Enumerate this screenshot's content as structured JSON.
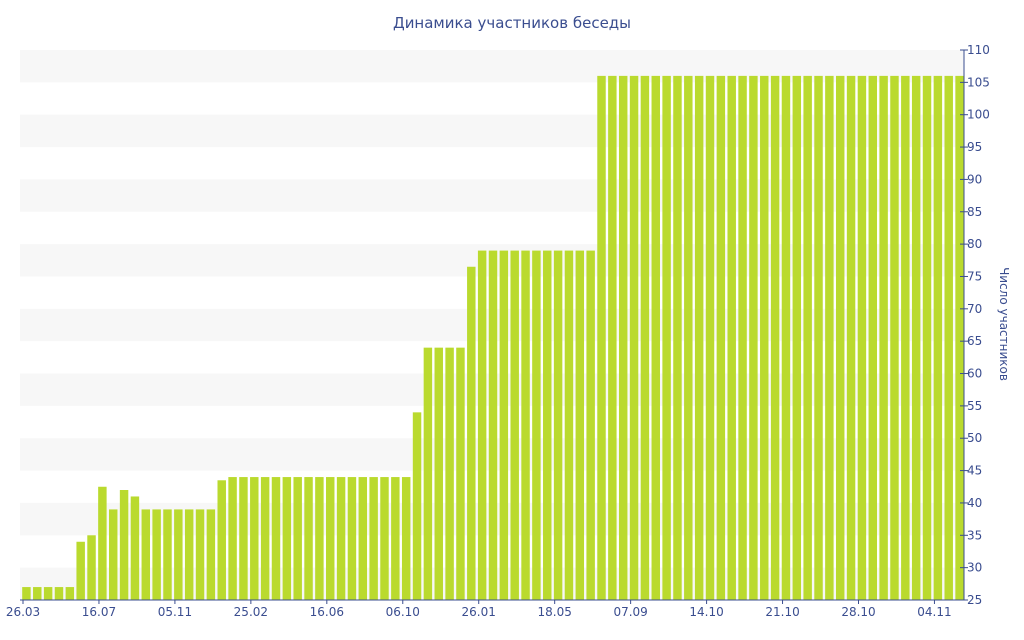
{
  "chart_data": {
    "type": "bar",
    "title": "Динамика участников беседы",
    "xlabel": "",
    "ylabel": "Число участников",
    "ylim": [
      25,
      110
    ],
    "yticks": [
      25,
      30,
      35,
      40,
      45,
      50,
      55,
      60,
      65,
      70,
      75,
      80,
      85,
      90,
      95,
      100,
      105,
      110
    ],
    "y_axis_side": "right",
    "grid": "alternating horizontal bands",
    "colors": {
      "bar": "#bada2e",
      "band": "#f7f7f7",
      "text": "#3a4d8f"
    },
    "xtick_labels": [
      {
        "index": 0,
        "label": "26.03"
      },
      {
        "index": 7,
        "label": "16.07"
      },
      {
        "index": 14,
        "label": "05.11"
      },
      {
        "index": 21,
        "label": "25.02"
      },
      {
        "index": 28,
        "label": "16.06"
      },
      {
        "index": 35,
        "label": "06.10"
      },
      {
        "index": 42,
        "label": "26.01"
      },
      {
        "index": 49,
        "label": "18.05"
      },
      {
        "index": 56,
        "label": "07.09"
      },
      {
        "index": 63,
        "label": "14.10"
      },
      {
        "index": 70,
        "label": "21.10"
      },
      {
        "index": 77,
        "label": "28.10"
      },
      {
        "index": 84,
        "label": "04.11"
      }
    ],
    "values": [
      27,
      27,
      27,
      27,
      27,
      34,
      35,
      42.5,
      39,
      42,
      41,
      39,
      39,
      39,
      39,
      39,
      39,
      39,
      43.5,
      44,
      44,
      44,
      44,
      44,
      44,
      44,
      44,
      44,
      44,
      44,
      44,
      44,
      44,
      44,
      44,
      44,
      54,
      64,
      64,
      64,
      64,
      76.5,
      79,
      79,
      79,
      79,
      79,
      79,
      79,
      79,
      79,
      79,
      79,
      106,
      106,
      106,
      106,
      106,
      106,
      106,
      106,
      106,
      106,
      106,
      106,
      106,
      106,
      106,
      106,
      106,
      106,
      106,
      106,
      106,
      106,
      106,
      106,
      106,
      106,
      106,
      106,
      106,
      106,
      106,
      106,
      106,
      106
    ]
  }
}
